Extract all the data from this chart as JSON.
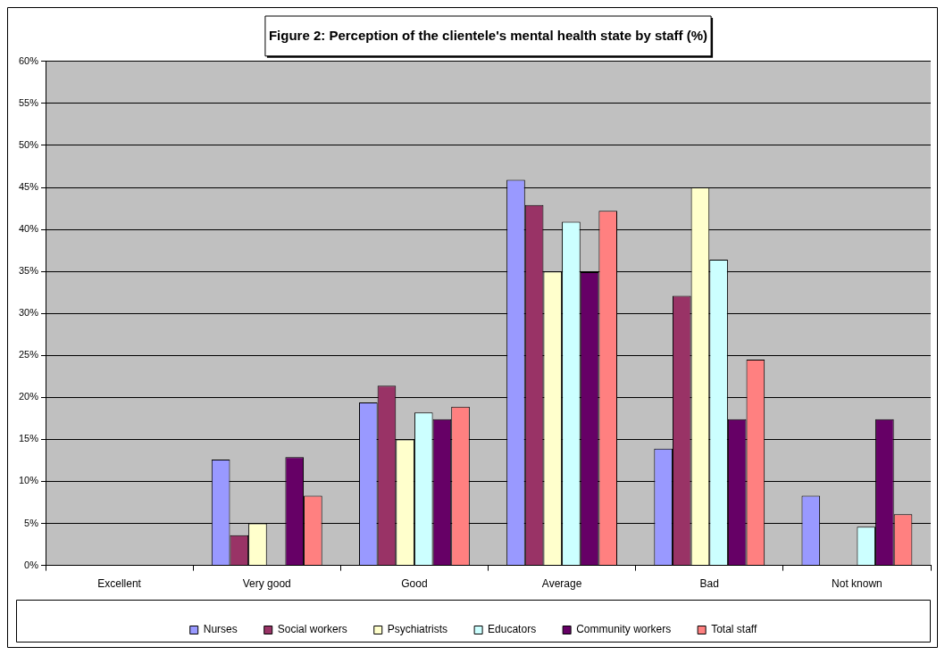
{
  "chart_data": {
    "type": "bar",
    "title": "Figure 2: Perception of the clientele's mental health state by staff (%)",
    "categories": [
      "Excellent",
      "Very good",
      "Good",
      "Average",
      "Bad",
      "Not known"
    ],
    "series": [
      {
        "name": "Nurses",
        "color": "#9999ff",
        "values": [
          0,
          12.6,
          19.4,
          45.9,
          13.9,
          8.3
        ]
      },
      {
        "name": "Social workers",
        "color": "#993366",
        "values": [
          0,
          3.6,
          21.4,
          42.9,
          32.1,
          0
        ]
      },
      {
        "name": "Psychiatrists",
        "color": "#ffffcc",
        "values": [
          0,
          5.0,
          15.0,
          35.0,
          45.0,
          0
        ]
      },
      {
        "name": "Educators",
        "color": "#ccffff",
        "values": [
          0,
          0,
          18.2,
          40.9,
          36.4,
          4.6
        ]
      },
      {
        "name": "Community workers",
        "color": "#660066",
        "values": [
          0,
          12.9,
          17.4,
          34.9,
          17.4,
          17.4
        ]
      },
      {
        "name": "Total staff",
        "color": "#ff8080",
        "values": [
          0,
          8.3,
          18.9,
          42.2,
          24.5,
          6.1
        ]
      }
    ],
    "ylim": [
      0,
      60
    ],
    "yticks": [
      {
        "value": 0,
        "label": "0%"
      },
      {
        "value": 5,
        "label": "5%"
      },
      {
        "value": 10,
        "label": "10%"
      },
      {
        "value": 15,
        "label": "15%"
      },
      {
        "value": 20,
        "label": "20%"
      },
      {
        "value": 25,
        "label": "25%"
      },
      {
        "value": 30,
        "label": "30%"
      },
      {
        "value": 35,
        "label": "35%"
      },
      {
        "value": 40,
        "label": "40%"
      },
      {
        "value": 45,
        "label": "45%"
      },
      {
        "value": 50,
        "label": "50%"
      },
      {
        "value": 55,
        "label": "55%"
      },
      {
        "value": 60,
        "label": "60%"
      }
    ],
    "grid": "y",
    "legend": "bottom"
  }
}
